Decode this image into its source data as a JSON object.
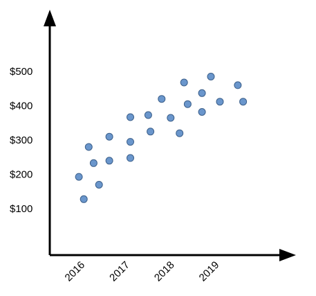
{
  "chart_data": {
    "type": "scatter",
    "title": "",
    "xlabel": "",
    "ylabel": "",
    "x_ticks": [
      {
        "value": 2016,
        "label": "2016"
      },
      {
        "value": 2017,
        "label": "2017"
      },
      {
        "value": 2018,
        "label": "2018"
      },
      {
        "value": 2019,
        "label": "2019"
      }
    ],
    "y_ticks": [
      {
        "value": 100,
        "label": "$100"
      },
      {
        "value": 200,
        "label": "$200"
      },
      {
        "value": 300,
        "label": "$300"
      },
      {
        "value": 400,
        "label": "$400"
      },
      {
        "value": 500,
        "label": "$500"
      }
    ],
    "xlim": [
      2015.3,
      2020.8
    ],
    "ylim": [
      -35,
      680
    ],
    "grid": false,
    "legend": "none",
    "point_color": "#6a96cc",
    "point_stroke": "#3b5f8a",
    "axis_color": "#000000",
    "points": [
      {
        "x": 2015.95,
        "y": 193
      },
      {
        "x": 2016.06,
        "y": 128
      },
      {
        "x": 2016.17,
        "y": 280
      },
      {
        "x": 2016.28,
        "y": 233
      },
      {
        "x": 2016.4,
        "y": 170
      },
      {
        "x": 2016.63,
        "y": 240
      },
      {
        "x": 2016.63,
        "y": 310
      },
      {
        "x": 2017.1,
        "y": 367
      },
      {
        "x": 2017.1,
        "y": 295
      },
      {
        "x": 2017.1,
        "y": 248
      },
      {
        "x": 2017.5,
        "y": 373
      },
      {
        "x": 2017.55,
        "y": 325
      },
      {
        "x": 2017.8,
        "y": 420
      },
      {
        "x": 2018.0,
        "y": 365
      },
      {
        "x": 2018.2,
        "y": 320
      },
      {
        "x": 2018.3,
        "y": 468
      },
      {
        "x": 2018.38,
        "y": 405
      },
      {
        "x": 2018.7,
        "y": 437
      },
      {
        "x": 2018.7,
        "y": 382
      },
      {
        "x": 2018.9,
        "y": 485
      },
      {
        "x": 2019.1,
        "y": 412
      },
      {
        "x": 2019.5,
        "y": 460
      },
      {
        "x": 2019.62,
        "y": 412
      }
    ]
  }
}
